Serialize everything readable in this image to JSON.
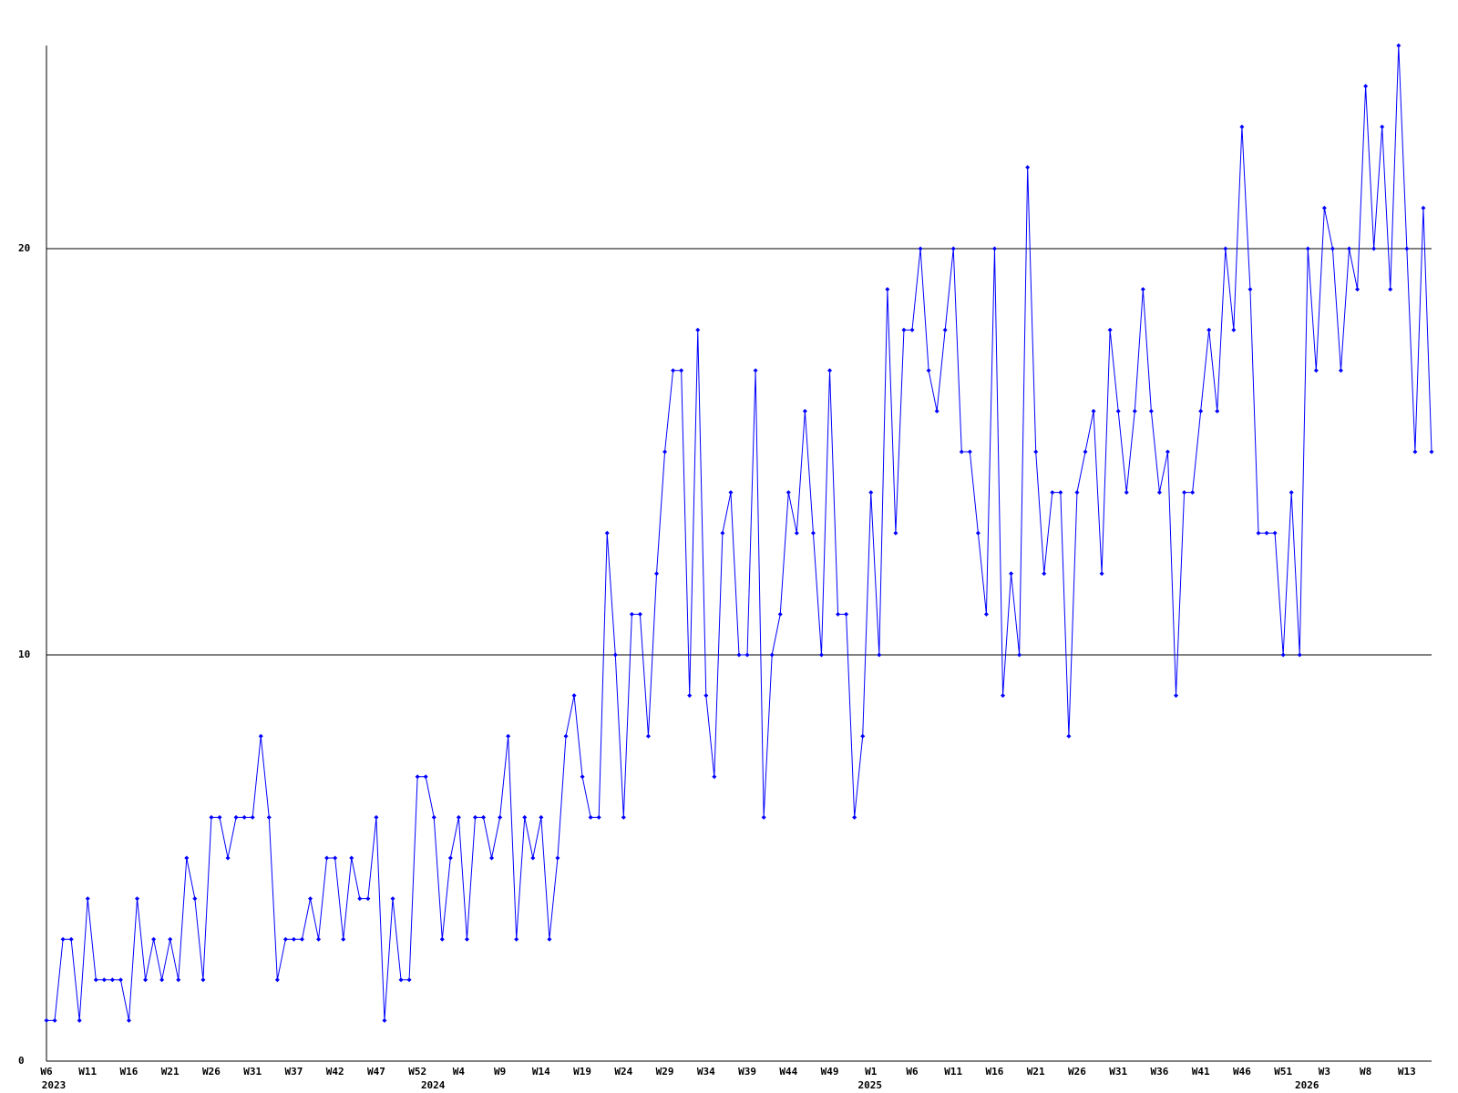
{
  "chart_data": {
    "type": "line",
    "categories": [
      "W6",
      null,
      null,
      null,
      null,
      "W11",
      null,
      null,
      null,
      null,
      "W16",
      null,
      null,
      null,
      null,
      "W21",
      null,
      null,
      null,
      null,
      "W26",
      null,
      null,
      null,
      null,
      "W31",
      null,
      null,
      null,
      null,
      "W37",
      null,
      null,
      null,
      null,
      "W42",
      null,
      null,
      null,
      null,
      "W47",
      null,
      null,
      null,
      null,
      "W52",
      null,
      null,
      null,
      null,
      "W4",
      null,
      null,
      null,
      null,
      "W9",
      null,
      null,
      null,
      null,
      "W14",
      null,
      null,
      null,
      null,
      "W19",
      null,
      null,
      null,
      null,
      "W24",
      null,
      null,
      null,
      null,
      "W29",
      null,
      null,
      null,
      null,
      "W34",
      null,
      null,
      null,
      null,
      "W39",
      null,
      null,
      null,
      null,
      "W44",
      null,
      null,
      null,
      null,
      "W49",
      null,
      null,
      null,
      null,
      "W1",
      null,
      null,
      null,
      null,
      "W6",
      null,
      null,
      null,
      null,
      "W11",
      null,
      null,
      null,
      null,
      "W16",
      null,
      null,
      null,
      null,
      "W21",
      null,
      null,
      null,
      null,
      "W26",
      null,
      null,
      null,
      null,
      "W31",
      null,
      null,
      null,
      null,
      "W36",
      null,
      null,
      null,
      null,
      "W41",
      null,
      null,
      null,
      null,
      "W46",
      null,
      null,
      null,
      null,
      "W51",
      null,
      null,
      null,
      null,
      "W3",
      null,
      null,
      null,
      null,
      "W8",
      null,
      null,
      null,
      null,
      "W13",
      null,
      null,
      null
    ],
    "years": [
      "2023",
      null,
      null,
      null,
      null,
      null,
      null,
      null,
      null,
      null,
      null,
      null,
      null,
      null,
      null,
      null,
      null,
      null,
      null,
      null,
      null,
      null,
      null,
      null,
      null,
      null,
      null,
      null,
      null,
      null,
      null,
      null,
      null,
      null,
      null,
      null,
      null,
      null,
      null,
      null,
      null,
      null,
      null,
      null,
      null,
      null,
      "2024",
      null,
      null,
      null,
      null,
      null,
      null,
      null,
      null,
      null,
      null,
      null,
      null,
      null,
      null,
      null,
      null,
      null,
      null,
      null,
      null,
      null,
      null,
      null,
      null,
      null,
      null,
      null,
      null,
      null,
      null,
      null,
      null,
      null,
      null,
      null,
      null,
      null,
      null,
      null,
      null,
      null,
      null,
      null,
      null,
      null,
      null,
      null,
      null,
      null,
      null,
      null,
      null,
      "2025",
      null,
      null,
      null,
      null,
      null,
      null,
      null,
      null,
      null,
      null,
      null,
      null,
      null,
      null,
      null,
      null,
      null,
      null,
      null,
      null,
      null,
      null,
      null,
      null,
      null,
      null,
      null,
      null,
      null,
      null,
      null,
      null,
      null,
      null,
      null,
      null,
      null,
      null,
      null,
      null,
      null,
      null,
      null,
      null,
      null,
      null,
      null,
      null,
      null,
      null,
      null,
      null,
      "2026",
      null,
      null,
      null,
      null,
      null,
      null,
      null,
      null,
      null,
      null,
      null,
      null,
      null,
      null,
      null,
      null
    ],
    "values": [
      1,
      1,
      3,
      3,
      1,
      4,
      2,
      2,
      2,
      2,
      1,
      4,
      2,
      3,
      2,
      3,
      2,
      5,
      4,
      2,
      6,
      6,
      5,
      6,
      6,
      6,
      8,
      6,
      2,
      3,
      3,
      3,
      4,
      3,
      5,
      5,
      3,
      5,
      4,
      4,
      6,
      1,
      4,
      2,
      2,
      7,
      7,
      6,
      3,
      5,
      6,
      3,
      6,
      6,
      5,
      6,
      8,
      3,
      6,
      5,
      6,
      3,
      5,
      8,
      9,
      7,
      6,
      6,
      13,
      10,
      6,
      11,
      11,
      8,
      12,
      15,
      17,
      17,
      9,
      18,
      9,
      7,
      13,
      14,
      10,
      10,
      17,
      6,
      10,
      11,
      14,
      13,
      16,
      13,
      10,
      17,
      11,
      11,
      6,
      8,
      14,
      10,
      19,
      13,
      18,
      18,
      20,
      17,
      16,
      18,
      20,
      15,
      15,
      13,
      11,
      20,
      9,
      12,
      10,
      22,
      15,
      12,
      14,
      14,
      8,
      14,
      15,
      16,
      12,
      18,
      16,
      14,
      16,
      19,
      16,
      14,
      15,
      9,
      14,
      14,
      16,
      18,
      16,
      20,
      18,
      23,
      19,
      13,
      13,
      13,
      10,
      14,
      10,
      20,
      17,
      21,
      20,
      17,
      20,
      19,
      24,
      20,
      23,
      19,
      25,
      20,
      15,
      21,
      15
    ],
    "color": "#0000ff",
    "ylim": [
      0,
      25
    ],
    "yticks": [
      0,
      10,
      20
    ],
    "grid": true
  }
}
